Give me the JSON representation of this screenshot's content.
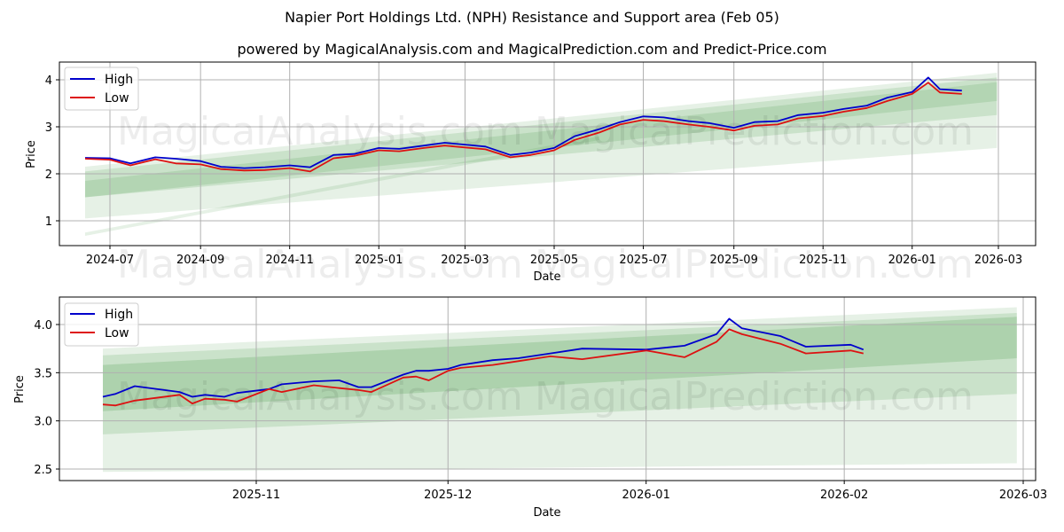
{
  "header": {
    "title": "Napier Port Holdings Ltd. (NPH) Resistance and Support area (Feb 05)",
    "subtitle": "powered by MagicalAnalysis.com and MagicalPrediction.com and Predict-Price.com"
  },
  "colors": {
    "high": "#0000cc",
    "low": "#dd1111",
    "band": "#2e8b2e",
    "grid": "#b0b0b0"
  },
  "watermarks": [
    "MagicalAnalysis.com",
    "MagicalPrediction.com"
  ],
  "chart_data": [
    {
      "type": "line",
      "title": "Napier Port Holdings Ltd. (NPH) Resistance and Support area (Feb 05)",
      "xlabel": "Date",
      "ylabel": "Price",
      "ylim": [
        0.5,
        4.4
      ],
      "grid": true,
      "legend": {
        "position": "upper left",
        "entries": [
          "High",
          "Low"
        ]
      },
      "x_ticks": [
        "2024-07",
        "2024-09",
        "2024-11",
        "2025-01",
        "2025-03",
        "2025-05",
        "2025-07",
        "2025-09",
        "2025-11",
        "2026-01",
        "2026-03"
      ],
      "y_ticks": [
        1,
        2,
        3,
        4
      ],
      "x": [
        "2024-06-14",
        "2024-07-01",
        "2024-07-15",
        "2024-08-01",
        "2024-08-15",
        "2024-09-01",
        "2024-09-15",
        "2024-10-01",
        "2024-10-15",
        "2024-11-01",
        "2024-11-15",
        "2024-12-01",
        "2024-12-15",
        "2025-01-01",
        "2025-01-15",
        "2025-02-01",
        "2025-02-15",
        "2025-03-01",
        "2025-03-15",
        "2025-04-01",
        "2025-04-15",
        "2025-05-01",
        "2025-05-15",
        "2025-06-01",
        "2025-06-15",
        "2025-07-01",
        "2025-07-15",
        "2025-08-01",
        "2025-08-15",
        "2025-09-01",
        "2025-09-15",
        "2025-10-01",
        "2025-10-15",
        "2025-11-01",
        "2025-11-15",
        "2025-12-01",
        "2025-12-15",
        "2026-01-01",
        "2026-01-12",
        "2026-01-20",
        "2026-02-04"
      ],
      "series": [
        {
          "name": "High",
          "values": [
            2.34,
            2.33,
            2.22,
            2.35,
            2.32,
            2.27,
            2.15,
            2.12,
            2.14,
            2.18,
            2.14,
            2.4,
            2.42,
            2.55,
            2.53,
            2.6,
            2.66,
            2.62,
            2.58,
            2.4,
            2.45,
            2.55,
            2.8,
            2.95,
            3.1,
            3.22,
            3.2,
            3.12,
            3.08,
            2.98,
            3.1,
            3.12,
            3.25,
            3.3,
            3.38,
            3.45,
            3.62,
            3.74,
            4.05,
            3.8,
            3.77
          ]
        },
        {
          "name": "Low",
          "values": [
            2.32,
            2.3,
            2.18,
            2.31,
            2.22,
            2.2,
            2.1,
            2.07,
            2.08,
            2.12,
            2.05,
            2.33,
            2.38,
            2.5,
            2.48,
            2.55,
            2.6,
            2.56,
            2.52,
            2.35,
            2.4,
            2.5,
            2.72,
            2.88,
            3.05,
            3.15,
            3.12,
            3.05,
            3.0,
            2.92,
            3.02,
            3.05,
            3.18,
            3.23,
            3.32,
            3.4,
            3.55,
            3.7,
            3.94,
            3.73,
            3.7
          ]
        }
      ],
      "bands": [
        {
          "start": {
            "x": "2024-06-14",
            "top": 2.15,
            "bottom": 1.05
          },
          "end": {
            "x": "2026-02-28",
            "top": 4.15,
            "bottom": 2.55
          },
          "opacity": 0.12
        },
        {
          "start": {
            "x": "2024-06-14",
            "top": 2.05,
            "bottom": 1.5
          },
          "end": {
            "x": "2026-02-28",
            "top": 4.05,
            "bottom": 3.25
          },
          "opacity": 0.15
        },
        {
          "start": {
            "x": "2024-06-14",
            "top": 1.85,
            "bottom": 1.5
          },
          "end": {
            "x": "2026-02-28",
            "top": 3.95,
            "bottom": 3.55
          },
          "opacity": 0.15
        },
        {
          "start": {
            "x": "2024-06-14",
            "top": 0.75,
            "bottom": 0.68
          },
          "end": {
            "x": "2025-06-01",
            "top": 2.8,
            "bottom": 2.72
          },
          "opacity": 0.12
        }
      ]
    },
    {
      "type": "line",
      "xlabel": "Date",
      "ylabel": "Price",
      "ylim": [
        2.39,
        4.29
      ],
      "grid": true,
      "legend": {
        "position": "upper left",
        "entries": [
          "High",
          "Low"
        ]
      },
      "x_ticks": [
        "2025-11",
        "2025-12",
        "2026-01",
        "2026-02",
        "2026-03"
      ],
      "y_ticks": [
        "2.5",
        "3.0",
        "3.5",
        "4.0"
      ],
      "x": [
        "2025-10-08",
        "2025-10-10",
        "2025-10-13",
        "2025-10-20",
        "2025-10-22",
        "2025-10-24",
        "2025-10-27",
        "2025-10-29",
        "2025-11-03",
        "2025-11-05",
        "2025-11-10",
        "2025-11-14",
        "2025-11-17",
        "2025-11-19",
        "2025-11-24",
        "2025-11-26",
        "2025-11-28",
        "2025-12-01",
        "2025-12-03",
        "2025-12-08",
        "2025-12-12",
        "2025-12-17",
        "2025-12-22",
        "2026-01-01",
        "2026-01-07",
        "2026-01-12",
        "2026-01-14",
        "2026-01-16",
        "2026-01-22",
        "2026-01-26",
        "2026-02-02",
        "2026-02-04"
      ],
      "series": [
        {
          "name": "High",
          "values": [
            3.25,
            3.28,
            3.36,
            3.3,
            3.25,
            3.27,
            3.25,
            3.29,
            3.33,
            3.38,
            3.41,
            3.42,
            3.35,
            3.35,
            3.48,
            3.52,
            3.52,
            3.54,
            3.58,
            3.63,
            3.65,
            3.7,
            3.75,
            3.74,
            3.78,
            3.9,
            4.06,
            3.96,
            3.88,
            3.77,
            3.79,
            3.74
          ]
        },
        {
          "name": "Low",
          "values": [
            3.17,
            3.16,
            3.21,
            3.27,
            3.18,
            3.23,
            3.22,
            3.2,
            3.33,
            3.3,
            3.37,
            3.34,
            3.32,
            3.3,
            3.45,
            3.46,
            3.42,
            3.52,
            3.55,
            3.58,
            3.62,
            3.67,
            3.64,
            3.73,
            3.66,
            3.82,
            3.95,
            3.9,
            3.8,
            3.7,
            3.73,
            3.7
          ]
        }
      ],
      "bands": [
        {
          "start": {
            "x": "2025-10-08",
            "top": 3.75,
            "bottom": 2.47
          },
          "end": {
            "x": "2026-02-28",
            "top": 4.18,
            "bottom": 2.56
          },
          "opacity": 0.12
        },
        {
          "start": {
            "x": "2025-10-08",
            "top": 3.68,
            "bottom": 2.86
          },
          "end": {
            "x": "2026-02-28",
            "top": 4.12,
            "bottom": 3.28
          },
          "opacity": 0.15
        },
        {
          "start": {
            "x": "2025-10-08",
            "top": 3.58,
            "bottom": 3.1
          },
          "end": {
            "x": "2026-02-28",
            "top": 4.08,
            "bottom": 3.65
          },
          "opacity": 0.18
        }
      ]
    }
  ]
}
